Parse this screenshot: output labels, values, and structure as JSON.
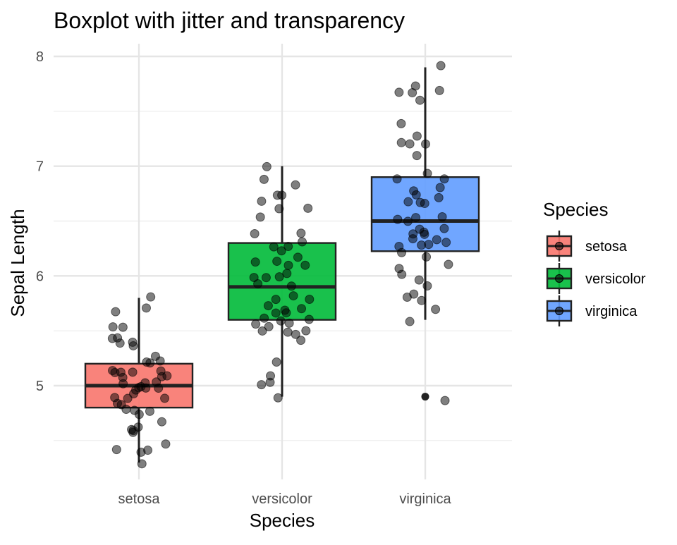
{
  "chart_data": {
    "type": "boxplot",
    "title": "Boxplot with jitter and transparency",
    "xlabel": "Species",
    "ylabel": "Sepal Length",
    "categories": [
      "setosa",
      "versicolor",
      "virginica"
    ],
    "ylim": [
      4.2,
      8.1
    ],
    "yticks": [
      5,
      6,
      7,
      8
    ],
    "grid": true,
    "legend": {
      "title": "Species",
      "position": "right",
      "entries": [
        "setosa",
        "versicolor",
        "virginica"
      ]
    },
    "colors": {
      "setosa": "#F8766D",
      "versicolor": "#00BA38",
      "virginica": "#619CFF"
    },
    "boxes": [
      {
        "category": "setosa",
        "min": 4.3,
        "q1": 4.8,
        "median": 5.0,
        "q3": 5.2,
        "max": 5.8,
        "outliers": []
      },
      {
        "category": "versicolor",
        "min": 4.9,
        "q1": 5.6,
        "median": 5.9,
        "q3": 6.3,
        "max": 7.0,
        "outliers": []
      },
      {
        "category": "virginica",
        "min": 5.6,
        "q1": 6.225,
        "median": 6.5,
        "q3": 6.9,
        "max": 7.9,
        "outliers": [
          4.9
        ]
      }
    ],
    "points": [
      {
        "category": "setosa",
        "values": [
          5.1,
          4.9,
          4.7,
          4.6,
          5.0,
          5.4,
          4.6,
          5.0,
          4.4,
          4.9,
          5.4,
          4.8,
          4.8,
          4.3,
          5.8,
          5.7,
          5.4,
          5.1,
          5.7,
          5.1,
          5.4,
          5.1,
          4.6,
          5.1,
          4.8,
          5.0,
          5.0,
          5.2,
          5.2,
          4.7,
          4.8,
          5.4,
          5.2,
          5.5,
          4.9,
          5.0,
          5.5,
          4.9,
          4.4,
          5.1,
          5.0,
          4.5,
          4.4,
          5.0,
          5.1,
          4.8,
          5.1,
          4.6,
          5.3,
          5.0
        ]
      },
      {
        "category": "versicolor",
        "values": [
          7.0,
          6.4,
          6.9,
          5.5,
          6.5,
          5.7,
          6.3,
          4.9,
          6.6,
          5.2,
          5.0,
          5.9,
          6.0,
          6.1,
          5.6,
          6.7,
          5.6,
          5.8,
          6.2,
          5.6,
          5.9,
          6.1,
          6.3,
          6.1,
          6.4,
          6.6,
          6.8,
          6.7,
          6.0,
          5.7,
          5.5,
          5.5,
          5.8,
          6.0,
          5.4,
          6.0,
          6.7,
          6.3,
          5.6,
          5.5,
          5.5,
          6.1,
          5.8,
          5.0,
          5.6,
          5.7,
          5.7,
          6.2,
          5.1,
          5.7
        ]
      },
      {
        "category": "virginica",
        "values": [
          6.3,
          5.8,
          7.1,
          6.3,
          6.5,
          7.6,
          4.9,
          7.3,
          6.7,
          7.2,
          6.5,
          6.4,
          6.8,
          5.7,
          5.8,
          6.4,
          6.5,
          7.7,
          7.7,
          6.0,
          6.9,
          5.6,
          7.7,
          6.3,
          6.7,
          7.2,
          6.2,
          6.1,
          6.4,
          7.2,
          7.4,
          7.9,
          6.4,
          6.3,
          6.1,
          7.7,
          6.3,
          6.4,
          6.0,
          6.9,
          6.7,
          6.9,
          5.8,
          6.8,
          6.7,
          6.7,
          6.3,
          6.5,
          6.2,
          5.9
        ]
      }
    ]
  }
}
